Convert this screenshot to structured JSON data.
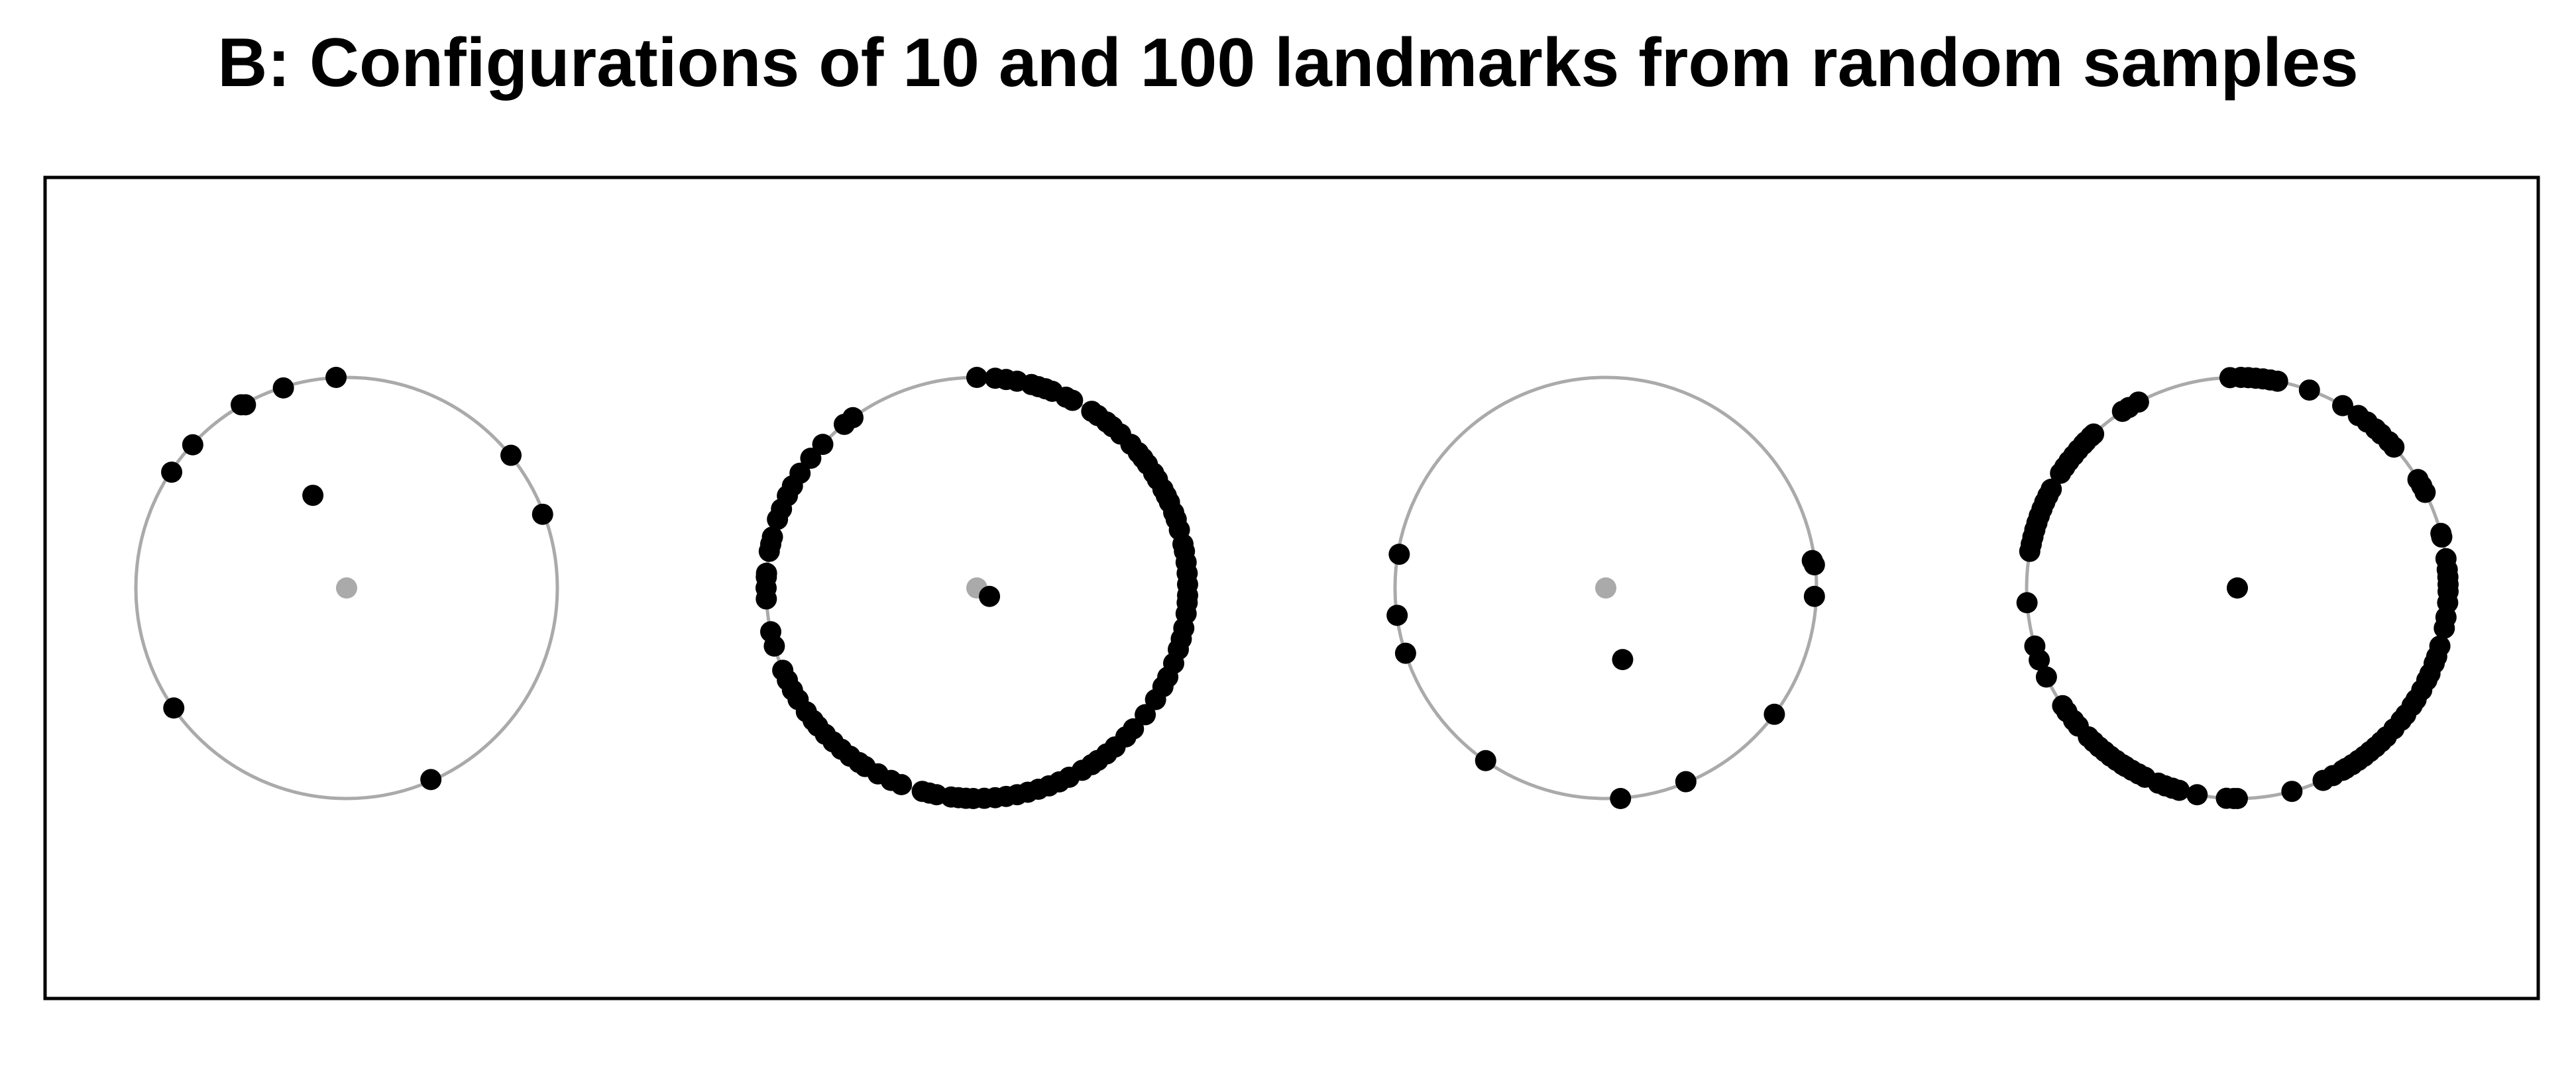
{
  "chart_data": {
    "type": "scatter",
    "title": "B: Configurations of 10 and 100 landmarks from random samples",
    "xlabel": "",
    "ylabel": "",
    "grid": false,
    "legend": "none",
    "colors": {
      "landmark": "#000000",
      "reference": "#aaaaaa",
      "frame": "#000000"
    },
    "panels": [
      {
        "landmark_count": 10,
        "reference_circle": {
          "center": [
            0,
            0
          ],
          "radius": 1
        },
        "reference_center": [
          0,
          0
        ],
        "mean_point": [
          -0.16,
          0.44
        ],
        "points": [
          [
            -0.73,
            0.68
          ],
          [
            -0.83,
            0.55
          ],
          [
            -0.48,
            0.87
          ],
          [
            -0.3,
            0.95
          ],
          [
            -0.05,
            1.0
          ],
          [
            0.78,
            0.63
          ],
          [
            0.93,
            0.35
          ],
          [
            -0.82,
            -0.57
          ],
          [
            0.4,
            -0.91
          ],
          [
            -0.5,
            0.87
          ]
        ]
      },
      {
        "landmark_count": 100,
        "reference_circle": {
          "center": [
            0,
            0
          ],
          "radius": 1
        },
        "reference_center": [
          0,
          0
        ],
        "mean_point": [
          0.06,
          -0.04
        ],
        "points": [
          [
            0.0,
            1.0
          ],
          [
            0.087,
            0.996
          ],
          [
            0.139,
            0.99
          ],
          [
            0.191,
            0.982
          ],
          [
            0.259,
            0.966
          ],
          [
            0.292,
            0.956
          ],
          [
            0.326,
            0.946
          ],
          [
            0.358,
            0.934
          ],
          [
            0.423,
            0.906
          ],
          [
            0.454,
            0.891
          ],
          [
            0.545,
            0.839
          ],
          [
            0.574,
            0.819
          ],
          [
            0.616,
            0.788
          ],
          [
            0.643,
            0.766
          ],
          [
            0.682,
            0.731
          ],
          [
            0.731,
            0.682
          ],
          [
            0.766,
            0.643
          ],
          [
            0.788,
            0.616
          ],
          [
            0.809,
            0.588
          ],
          [
            0.839,
            0.545
          ],
          [
            0.857,
            0.515
          ],
          [
            0.883,
            0.469
          ],
          [
            0.899,
            0.438
          ],
          [
            0.914,
            0.407
          ],
          [
            0.934,
            0.358
          ],
          [
            0.946,
            0.326
          ],
          [
            0.961,
            0.276
          ],
          [
            0.978,
            0.208
          ],
          [
            0.985,
            0.174
          ],
          [
            0.993,
            0.122
          ],
          [
            0.998,
            0.07
          ],
          [
            1.0,
            0.017
          ],
          [
            1.0,
            -0.035
          ],
          [
            0.998,
            -0.07
          ],
          [
            0.993,
            -0.122
          ],
          [
            0.982,
            -0.191
          ],
          [
            0.97,
            -0.242
          ],
          [
            0.956,
            -0.292
          ],
          [
            0.934,
            -0.358
          ],
          [
            0.906,
            -0.423
          ],
          [
            0.883,
            -0.469
          ],
          [
            0.848,
            -0.53
          ],
          [
            0.799,
            -0.602
          ],
          [
            0.743,
            -0.669
          ],
          [
            0.707,
            -0.707
          ],
          [
            0.656,
            -0.755
          ],
          [
            0.616,
            -0.788
          ],
          [
            0.574,
            -0.819
          ],
          [
            0.545,
            -0.839
          ],
          [
            0.5,
            -0.866
          ],
          [
            0.438,
            -0.899
          ],
          [
            0.391,
            -0.921
          ],
          [
            0.342,
            -0.94
          ],
          [
            0.292,
            -0.956
          ],
          [
            0.242,
            -0.97
          ],
          [
            0.191,
            -0.982
          ],
          [
            0.139,
            -0.99
          ],
          [
            0.087,
            -0.996
          ],
          [
            0.035,
            -0.999
          ],
          [
            -0.017,
            -1.0
          ],
          [
            -0.052,
            -0.999
          ],
          [
            -0.087,
            -0.996
          ],
          [
            -0.122,
            -0.993
          ],
          [
            -0.191,
            -0.982
          ],
          [
            -0.225,
            -0.974
          ],
          [
            -0.259,
            -0.966
          ],
          [
            -0.358,
            -0.934
          ],
          [
            -0.407,
            -0.914
          ],
          [
            -0.469,
            -0.883
          ],
          [
            -0.53,
            -0.848
          ],
          [
            -0.559,
            -0.829
          ],
          [
            -0.602,
            -0.799
          ],
          [
            -0.643,
            -0.766
          ],
          [
            -0.682,
            -0.731
          ],
          [
            -0.719,
            -0.695
          ],
          [
            -0.755,
            -0.656
          ],
          [
            -0.777,
            -0.629
          ],
          [
            -0.809,
            -0.588
          ],
          [
            -0.848,
            -0.53
          ],
          [
            -0.875,
            -0.485
          ],
          [
            -0.899,
            -0.438
          ],
          [
            -0.921,
            -0.391
          ],
          [
            -0.961,
            -0.276
          ],
          [
            -0.978,
            -0.208
          ],
          [
            -0.999,
            -0.052
          ],
          [
            -1.0,
            -0.0
          ],
          [
            -0.999,
            0.052
          ],
          [
            -0.998,
            0.07
          ],
          [
            -0.985,
            0.174
          ],
          [
            -0.978,
            0.208
          ],
          [
            -0.97,
            0.242
          ],
          [
            -0.946,
            0.326
          ],
          [
            -0.927,
            0.375
          ],
          [
            -0.899,
            0.438
          ],
          [
            -0.875,
            0.485
          ],
          [
            -0.839,
            0.545
          ],
          [
            -0.788,
            0.616
          ],
          [
            -0.731,
            0.682
          ],
          [
            -0.629,
            0.777
          ],
          [
            -0.588,
            0.809
          ]
        ]
      },
      {
        "landmark_count": 10,
        "reference_circle": {
          "center": [
            0,
            0
          ],
          "radius": 1
        },
        "reference_center": [
          0,
          0
        ],
        "mean_point": [
          0.08,
          -0.34
        ],
        "points": [
          [
            -0.98,
            0.16
          ],
          [
            -0.99,
            -0.13
          ],
          [
            -0.95,
            -0.31
          ],
          [
            -0.57,
            -0.82
          ],
          [
            0.07,
            -1.0
          ],
          [
            0.38,
            -0.92
          ],
          [
            0.8,
            -0.6
          ],
          [
            0.99,
            -0.04
          ],
          [
            0.99,
            0.11
          ],
          [
            0.98,
            0.13
          ]
        ]
      },
      {
        "landmark_count": 100,
        "reference_circle": {
          "center": [
            0,
            0
          ],
          "radius": 1
        },
        "reference_center": [
          0,
          0
        ],
        "mean_point": [
          0.0,
          0.0
        ],
        "points": [
          [
            -0.035,
            0.999
          ],
          [
            0.017,
            1.0
          ],
          [
            0.052,
            0.999
          ],
          [
            0.087,
            0.996
          ],
          [
            0.122,
            0.993
          ],
          [
            0.156,
            0.988
          ],
          [
            0.191,
            0.982
          ],
          [
            0.342,
            0.94
          ],
          [
            0.5,
            0.866
          ],
          [
            0.574,
            0.819
          ],
          [
            0.616,
            0.788
          ],
          [
            0.656,
            0.755
          ],
          [
            0.682,
            0.731
          ],
          [
            0.719,
            0.695
          ],
          [
            0.743,
            0.669
          ],
          [
            0.857,
            0.515
          ],
          [
            0.875,
            0.485
          ],
          [
            0.891,
            0.454
          ],
          [
            0.966,
            0.259
          ],
          [
            0.97,
            0.242
          ],
          [
            0.99,
            0.139
          ],
          [
            0.996,
            0.087
          ],
          [
            0.999,
            0.052
          ],
          [
            1.0,
            0.017
          ],
          [
            1.0,
            -0.017
          ],
          [
            0.998,
            -0.07
          ],
          [
            0.99,
            -0.139
          ],
          [
            0.982,
            -0.191
          ],
          [
            0.961,
            -0.276
          ],
          [
            0.946,
            -0.326
          ],
          [
            0.934,
            -0.358
          ],
          [
            0.914,
            -0.407
          ],
          [
            0.899,
            -0.438
          ],
          [
            0.875,
            -0.485
          ],
          [
            0.848,
            -0.53
          ],
          [
            0.829,
            -0.559
          ],
          [
            0.799,
            -0.602
          ],
          [
            0.777,
            -0.629
          ],
          [
            0.743,
            -0.669
          ],
          [
            0.707,
            -0.707
          ],
          [
            0.682,
            -0.731
          ],
          [
            0.656,
            -0.755
          ],
          [
            0.629,
            -0.777
          ],
          [
            0.602,
            -0.799
          ],
          [
            0.574,
            -0.819
          ],
          [
            0.545,
            -0.839
          ],
          [
            0.515,
            -0.857
          ],
          [
            0.5,
            -0.866
          ],
          [
            0.454,
            -0.891
          ],
          [
            0.407,
            -0.914
          ],
          [
            0.259,
            -0.966
          ],
          [
            0.0,
            -1.0
          ],
          [
            -0.017,
            -1.0
          ],
          [
            -0.052,
            -0.999
          ],
          [
            -0.191,
            -0.982
          ],
          [
            -0.276,
            -0.961
          ],
          [
            -0.308,
            -0.951
          ],
          [
            -0.342,
            -0.94
          ],
          [
            -0.375,
            -0.927
          ],
          [
            -0.438,
            -0.899
          ],
          [
            -0.469,
            -0.883
          ],
          [
            -0.5,
            -0.866
          ],
          [
            -0.53,
            -0.848
          ],
          [
            -0.545,
            -0.839
          ],
          [
            -0.574,
            -0.819
          ],
          [
            -0.602,
            -0.799
          ],
          [
            -0.629,
            -0.777
          ],
          [
            -0.656,
            -0.755
          ],
          [
            -0.682,
            -0.731
          ],
          [
            -0.707,
            -0.707
          ],
          [
            -0.755,
            -0.656
          ],
          [
            -0.777,
            -0.629
          ],
          [
            -0.809,
            -0.588
          ],
          [
            -0.829,
            -0.559
          ],
          [
            -0.906,
            -0.423
          ],
          [
            -0.94,
            -0.342
          ],
          [
            -0.961,
            -0.276
          ],
          [
            -0.998,
            -0.07
          ],
          [
            -0.985,
            0.174
          ],
          [
            -0.978,
            0.208
          ],
          [
            -0.97,
            0.242
          ],
          [
            -0.961,
            0.276
          ],
          [
            -0.951,
            0.309
          ],
          [
            -0.94,
            0.342
          ],
          [
            -0.927,
            0.375
          ],
          [
            -0.914,
            0.407
          ],
          [
            -0.899,
            0.438
          ],
          [
            -0.883,
            0.469
          ],
          [
            -0.839,
            0.545
          ],
          [
            -0.819,
            0.574
          ],
          [
            -0.799,
            0.602
          ],
          [
            -0.777,
            0.629
          ],
          [
            -0.755,
            0.656
          ],
          [
            -0.731,
            0.682
          ],
          [
            -0.719,
            0.695
          ],
          [
            -0.695,
            0.719
          ],
          [
            -0.682,
            0.731
          ],
          [
            -0.545,
            0.839
          ],
          [
            -0.515,
            0.857
          ],
          [
            -0.469,
            0.883
          ]
        ]
      }
    ]
  }
}
